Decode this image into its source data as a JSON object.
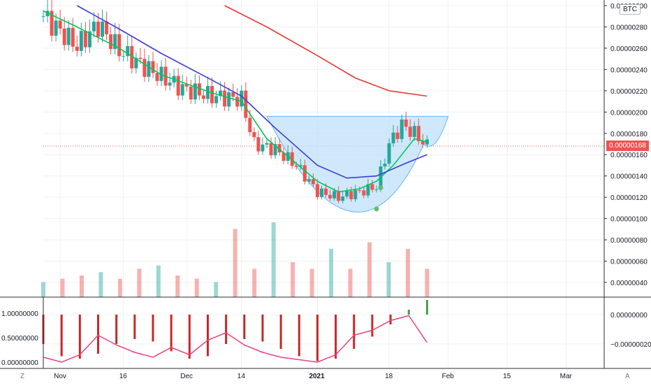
{
  "symbol_badge": "BTC",
  "bottom_left_button": "Z",
  "bottom_right_button": "A",
  "chart_data": [
    {
      "type": "candlestick",
      "title": "",
      "y_axis_ticks": [
        "0.00000300",
        "0.00000280",
        "0.00000260",
        "0.00000240",
        "0.00000220",
        "0.00000200",
        "0.00000180",
        "0.00000160",
        "0.00000140",
        "0.00000120",
        "0.00000100",
        "0.00000080",
        "0.00000060",
        "0.00000040"
      ],
      "ylim": [
        2.8e-07,
        3.02e-06
      ],
      "last_price_label": "0.00000168",
      "last_price": 1.68e-06,
      "x_axis_labels": [
        "Nov",
        "16",
        "Dec",
        "14",
        "2021",
        "18",
        "Feb",
        "15",
        "Mar"
      ],
      "x_axis_dates": [
        "2020-11-01",
        "2020-11-16",
        "2020-12-01",
        "2020-12-14",
        "2021-01-01",
        "2021-01-18",
        "2021-02-01",
        "2021-02-15",
        "2021-03-01"
      ],
      "colors": {
        "up": "#26a69a",
        "down": "#ef5350",
        "ma_fast": "#00c853",
        "ma_mid": "#3d3dd6",
        "ma_slow": "#e53935",
        "cup_fill": "#bbdefb",
        "grid": "#eef0f3",
        "last_price_line": "#ef5350"
      },
      "series": [
        {
          "name": "",
          "role": "close_approx",
          "x": [
            "2020-10-28",
            "2020-11-05",
            "2020-11-10",
            "2020-11-15",
            "2020-11-22",
            "2020-11-30",
            "2020-12-07",
            "2020-12-14",
            "2020-12-17",
            "2020-12-22",
            "2020-12-27",
            "2021-01-01",
            "2021-01-06",
            "2021-01-11",
            "2021-01-15",
            "2021-01-18",
            "2021-01-21",
            "2021-01-24",
            "2021-01-27"
          ],
          "y": [
            2.9e-06,
            2.62e-06,
            2.82e-06,
            2.58e-06,
            2.4e-06,
            2.22e-06,
            2.15e-06,
            2.12e-06,
            1.7e-06,
            1.65e-06,
            1.5e-06,
            1.25e-06,
            1.2e-06,
            1.25e-06,
            1.3e-06,
            1.7e-06,
            1.88e-06,
            1.8e-06,
            1.68e-06
          ]
        },
        {
          "name": "",
          "role": "ma_fast",
          "x": [
            "2020-10-28",
            "2020-11-05",
            "2020-11-15",
            "2020-11-25",
            "2020-12-07",
            "2020-12-14",
            "2020-12-20",
            "2020-12-26",
            "2021-01-01",
            "2021-01-06",
            "2021-01-11",
            "2021-01-15",
            "2021-01-19",
            "2021-01-24",
            "2021-01-27"
          ],
          "y": [
            2.95e-06,
            2.8e-06,
            2.6e-06,
            2.35e-06,
            2.18e-06,
            2.1e-06,
            1.75e-06,
            1.55e-06,
            1.35e-06,
            1.25e-06,
            1.28e-06,
            1.35e-06,
            1.5e-06,
            1.75e-06,
            1.72e-06
          ]
        },
        {
          "name": "",
          "role": "ma_mid",
          "x": [
            "2020-11-05",
            "2020-11-15",
            "2020-11-25",
            "2020-12-07",
            "2020-12-14",
            "2020-12-22",
            "2021-01-01",
            "2021-01-08",
            "2021-01-15",
            "2021-01-22",
            "2021-01-27"
          ],
          "y": [
            3e-06,
            2.78e-06,
            2.55e-06,
            2.3e-06,
            2.15e-06,
            1.85e-06,
            1.5e-06,
            1.38e-06,
            1.4e-06,
            1.52e-06,
            1.6e-06
          ]
        },
        {
          "name": "",
          "role": "ma_slow",
          "x": [
            "2020-12-10",
            "2020-12-20",
            "2021-01-01",
            "2021-01-10",
            "2021-01-18",
            "2021-01-27"
          ],
          "y": [
            3e-06,
            2.8e-06,
            2.53e-06,
            2.32e-06,
            2.2e-06,
            2.15e-06
          ]
        }
      ],
      "cup_pattern": {
        "rim_level": 1.96e-06,
        "bottom": 1.11e-06,
        "start": "2020-12-20",
        "end": "2021-02-01"
      },
      "markers": [
        {
          "date": "2021-01-15",
          "y": 1.09e-06
        },
        {
          "date": "2021-01-16",
          "y": 1.29e-06
        }
      ],
      "volume": {
        "y_axis_ticks": [],
        "values_relative": [
          0.1,
          0.15,
          0.2,
          0.25,
          0.15,
          0.3,
          0.35,
          0.2,
          0.15,
          0.1,
          0.9,
          0.3,
          1.0,
          0.4,
          0.3,
          0.6,
          0.3,
          0.7,
          0.4,
          0.6,
          0.3
        ]
      }
    },
    {
      "type": "bar",
      "title": "",
      "left_axis_ticks": [
        "1.00000000",
        "0.50000000",
        "0.00000000"
      ],
      "right_axis_ticks": [
        "0.00000000",
        "−0.00000020"
      ],
      "x_axis_labels": [
        "Nov",
        "16",
        "Dec",
        "14",
        "2021",
        "18",
        "Feb",
        "15",
        "Mar"
      ],
      "histogram_relative": [
        -0.6,
        -0.85,
        -0.9,
        -0.8,
        -0.6,
        -0.5,
        -0.55,
        -0.75,
        -0.9,
        -0.85,
        -0.6,
        -0.5,
        -0.55,
        -0.7,
        -0.85,
        -0.95,
        -0.9,
        -0.7,
        -0.45,
        -0.2,
        0.1,
        0.3
      ],
      "oscillator_relative": [
        0.1,
        0.0,
        0.15,
        0.55,
        0.35,
        0.2,
        0.1,
        0.3,
        0.15,
        0.45,
        0.6,
        0.35,
        0.2,
        0.1,
        0.05,
        0.0,
        0.15,
        0.55,
        0.65,
        0.85,
        0.95,
        0.4
      ]
    }
  ]
}
